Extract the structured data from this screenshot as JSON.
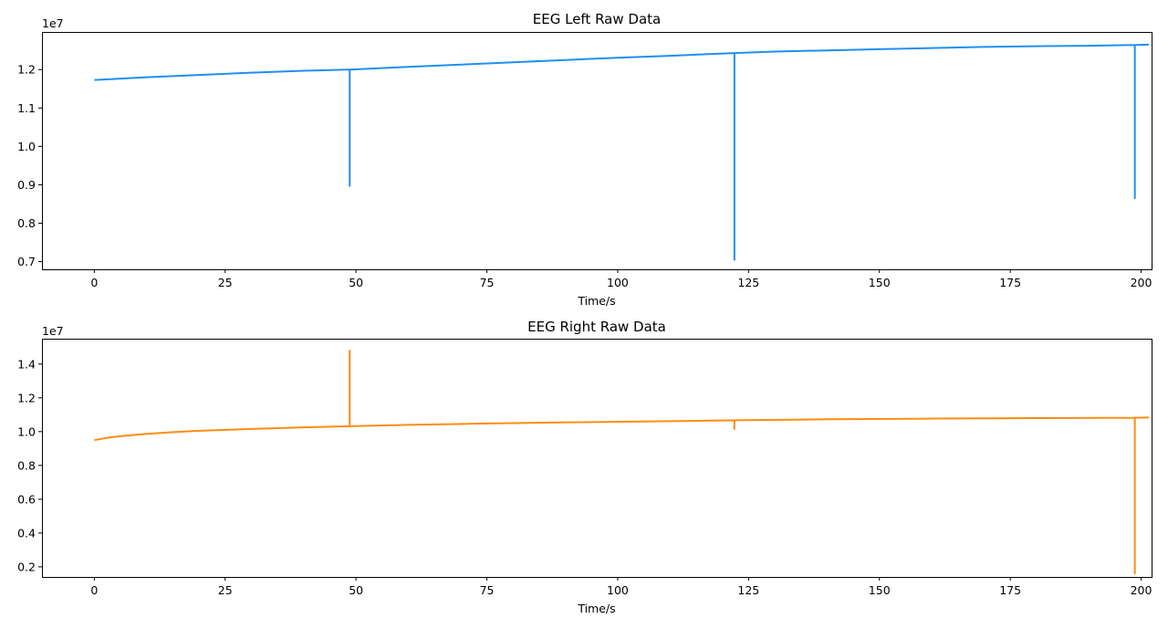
{
  "chart_data": [
    {
      "type": "line",
      "title": "EEG Left Raw Data",
      "xlabel": "Time/s",
      "ylabel": "",
      "y_offset_text": "1e7",
      "xlim": [
        -10,
        202
      ],
      "ylim": [
        0.68,
        1.298
      ],
      "xticks": [
        0,
        25,
        50,
        75,
        100,
        125,
        150,
        175,
        200
      ],
      "yticks": [
        0.7,
        0.8,
        0.9,
        1.0,
        1.1,
        1.2
      ],
      "color": "#1f8ff0",
      "grid": false,
      "series": [
        {
          "x": [
            0,
            10,
            20,
            30,
            40,
            48.8,
            48.8,
            48.8,
            60,
            70,
            80,
            90,
            100,
            110,
            122.3,
            122.3,
            122.3,
            130,
            140,
            150,
            160,
            170,
            180,
            190,
            198.8,
            198.8,
            198.8,
            201.5
          ],
          "y": [
            1.173,
            1.18,
            1.186,
            1.192,
            1.197,
            1.2,
            0.897,
            1.2,
            1.207,
            1.213,
            1.219,
            1.225,
            1.231,
            1.236,
            1.243,
            0.705,
            1.243,
            1.247,
            1.25,
            1.253,
            1.256,
            1.259,
            1.261,
            1.262,
            1.264,
            0.865,
            1.264,
            1.265
          ]
        }
      ]
    },
    {
      "type": "line",
      "title": "EEG Right Raw Data",
      "xlabel": "Time/s",
      "ylabel": "",
      "y_offset_text": "1e7",
      "xlim": [
        -10,
        202
      ],
      "ylim": [
        0.14,
        1.55
      ],
      "xticks": [
        0,
        25,
        50,
        75,
        100,
        125,
        150,
        175,
        200
      ],
      "yticks": [
        0.2,
        0.4,
        0.6,
        0.8,
        1.0,
        1.2,
        1.4
      ],
      "color": "#ff8c14",
      "grid": false,
      "series": [
        {
          "x": [
            0,
            3,
            6,
            10,
            15,
            20,
            30,
            40,
            48.8,
            48.8,
            48.8,
            60,
            75,
            90,
            110,
            122.3,
            122.3,
            122.3,
            140,
            160,
            180,
            198.8,
            198.8,
            198.8,
            201.5
          ],
          "y": [
            0.95,
            0.966,
            0.976,
            0.987,
            0.997,
            1.005,
            1.016,
            1.025,
            1.032,
            1.48,
            1.032,
            1.04,
            1.048,
            1.055,
            1.062,
            1.067,
            1.015,
            1.067,
            1.073,
            1.077,
            1.08,
            1.082,
            0.16,
            1.082,
            1.084
          ]
        }
      ]
    }
  ]
}
